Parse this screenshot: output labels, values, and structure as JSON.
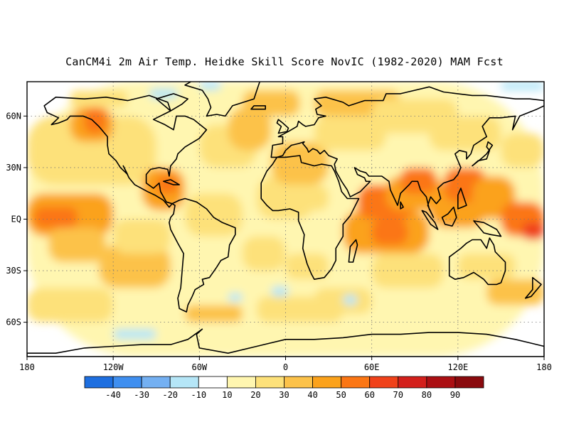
{
  "title": "CanCM4i 2m Air Temp. Heidke Skill Score NovIC (1982-2020) MAM Fcst",
  "map": {
    "projection": "equirectangular",
    "lon_range": [
      -180,
      180
    ],
    "lat_range": [
      -80,
      80
    ],
    "grid": "dotted",
    "x_ticks": [
      "180",
      "120W",
      "60W",
      "0",
      "60E",
      "120E",
      "180"
    ],
    "y_ticks": [
      "60N",
      "30N",
      "EQ",
      "30S",
      "60S"
    ]
  },
  "colorbar": {
    "labels": [
      "-40",
      "-30",
      "-20",
      "-10",
      "10",
      "20",
      "30",
      "40",
      "50",
      "60",
      "70",
      "80",
      "90"
    ],
    "colors": [
      "#1e6fe0",
      "#3f8ff0",
      "#74b0f2",
      "#b5e6f7",
      "#ffffff",
      "#fff6b0",
      "#fde17a",
      "#fcc24a",
      "#fba21c",
      "#fb7614",
      "#f0421a",
      "#d3201c",
      "#ab0f13",
      "#8a0a0e"
    ]
  },
  "skill_colors": {
    "neg_light": "#b5e6f7",
    "neg_mid": "#74b0f2",
    "pale": "#fff6b0",
    "light": "#fde17a",
    "mid": "#fcc24a",
    "orange": "#fba21c",
    "deep": "#fb7614",
    "red": "#f0421a"
  }
}
